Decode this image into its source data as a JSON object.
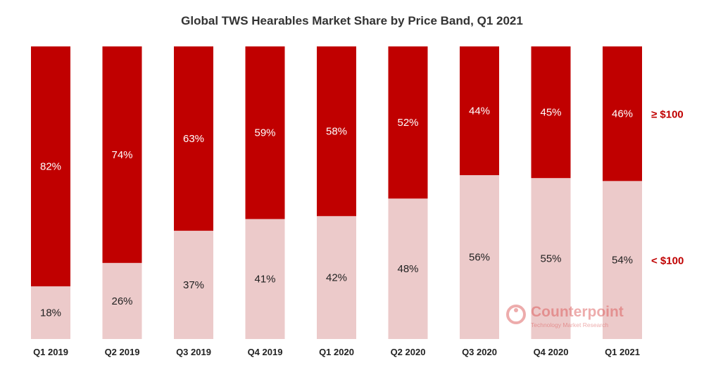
{
  "chart_data": {
    "type": "bar",
    "stacked": true,
    "title": "Global TWS Hearables Market Share by Price Band, Q1 2021",
    "categories": [
      "Q1 2019",
      "Q2 2019",
      "Q3 2019",
      "Q4 2019",
      "Q1 2020",
      "Q2 2020",
      "Q3 2020",
      "Q4 2020",
      "Q1 2021"
    ],
    "series": [
      {
        "name": "< $100",
        "values": [
          18,
          26,
          37,
          41,
          42,
          48,
          56,
          55,
          54
        ],
        "labels": [
          "18%",
          "26%",
          "37%",
          "41%",
          "42%",
          "48%",
          "56%",
          "55%",
          "54%"
        ],
        "color": "#eccaca",
        "label_color": "#222222"
      },
      {
        "name": "≥ $100",
        "values": [
          82,
          74,
          63,
          59,
          58,
          52,
          44,
          45,
          46
        ],
        "labels": [
          "82%",
          "74%",
          "63%",
          "59%",
          "58%",
          "52%",
          "44%",
          "45%",
          "46%"
        ],
        "color": "#c00000",
        "label_color": "#ffffff"
      }
    ],
    "legend_color": "#c00000",
    "legend_placement": "right",
    "ylim": [
      0,
      100
    ],
    "grid": false,
    "xlabel": "",
    "ylabel": ""
  },
  "watermark": {
    "brand": "Counterpoint",
    "tagline": "Technology Market Research",
    "color": "#d94a4a"
  }
}
